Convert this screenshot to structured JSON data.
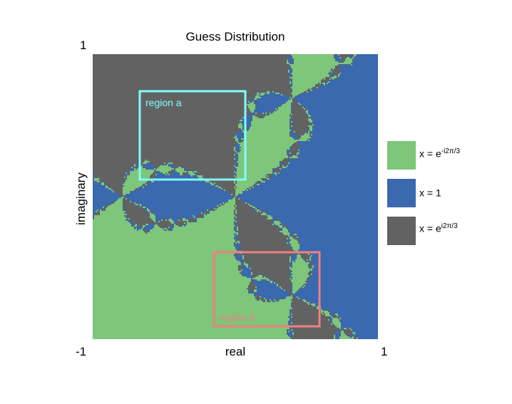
{
  "chart_data": {
    "type": "heatmap",
    "title": "Guess Distribution",
    "xlabel": "real",
    "ylabel": "imaginary",
    "xlim": [
      -1,
      1
    ],
    "ylim": [
      -1,
      1
    ],
    "tick_labels": {
      "y_top": "1",
      "x_left": "-1",
      "x_right": "1"
    },
    "description_of_values": "Newton's method basin of convergence for z^3 = 1 on the square [-1,1] x [-1,1]",
    "legend": [
      {
        "base": "x = e",
        "exponent": "-i2π/3",
        "color": "#7dc67a"
      },
      {
        "base": "x = 1",
        "exponent": "",
        "color": "#3a69b0"
      },
      {
        "base": "x = e",
        "exponent": "i2π/3",
        "color": "#626262"
      }
    ],
    "regions": [
      {
        "label": "region a",
        "x": [
          -0.67,
          0.07
        ],
        "y": [
          0.12,
          0.74
        ],
        "color": "#80ffff"
      },
      {
        "label": "region b",
        "x": [
          -0.15,
          0.59
        ],
        "y": [
          -0.91,
          -0.39
        ],
        "color": "#f08080"
      }
    ]
  }
}
